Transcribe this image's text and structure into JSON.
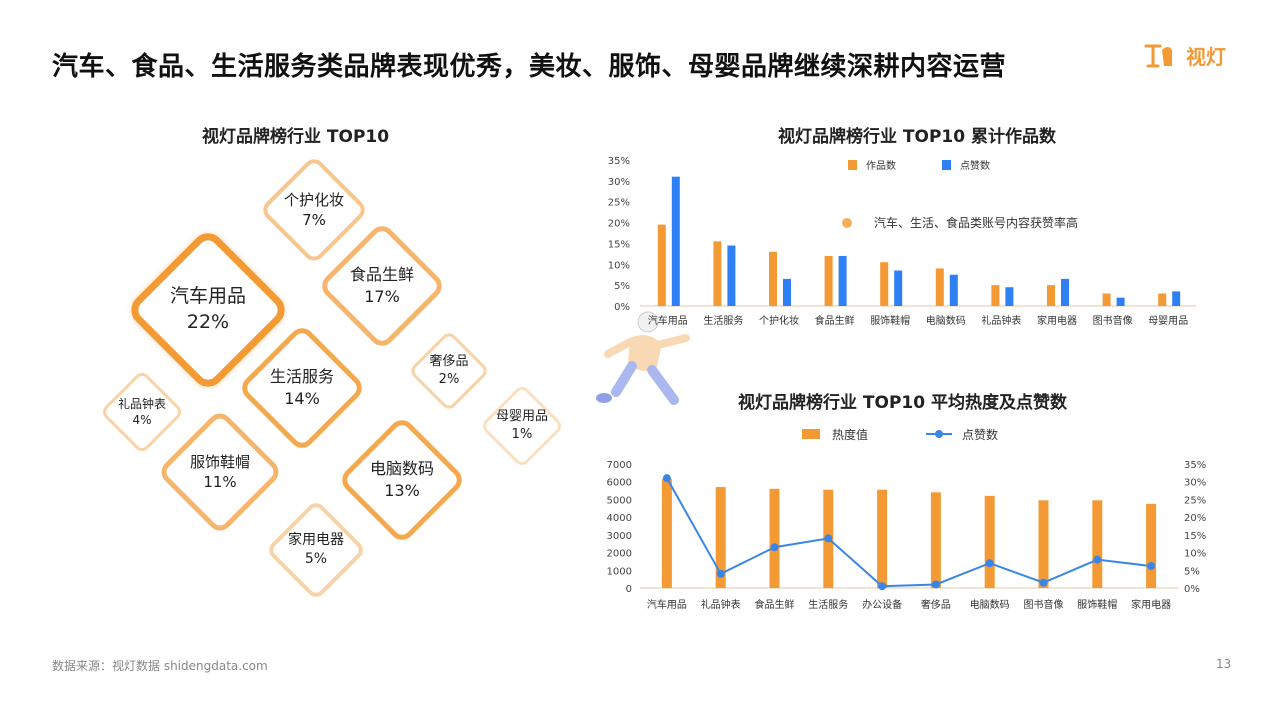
{
  "header": {
    "title": "汽车、食品、生活服务类品牌表现优秀，美妆、服饰、母婴品牌继续深耕内容运营",
    "logo_text": "视灯"
  },
  "left_chart": {
    "title": "视灯品牌榜行业 TOP10",
    "items": [
      {
        "name": "汽车用品",
        "pct": "22%"
      },
      {
        "name": "个护化妆",
        "pct": "7%"
      },
      {
        "name": "食品生鲜",
        "pct": "17%"
      },
      {
        "name": "生活服务",
        "pct": "14%"
      },
      {
        "name": "奢侈品",
        "pct": "2%"
      },
      {
        "name": "礼品钟表",
        "pct": "4%"
      },
      {
        "name": "母婴用品",
        "pct": "1%"
      },
      {
        "name": "服饰鞋帽",
        "pct": "11%"
      },
      {
        "name": "电脑数码",
        "pct": "13%"
      },
      {
        "name": "家用电器",
        "pct": "5%"
      }
    ]
  },
  "colors": {
    "orange": "#f39a35",
    "blue": "#2f7ff5",
    "line_blue": "#3a86e8",
    "diamond_border": "#f7c68f"
  },
  "chart_data": [
    {
      "type": "bar",
      "title": "视灯品牌榜行业 TOP10 累计作品数",
      "categories": [
        "汽车用品",
        "生活服务",
        "个护化妆",
        "食品生鲜",
        "服饰鞋帽",
        "电脑数码",
        "礼品钟表",
        "家用电器",
        "图书音像",
        "母婴用品"
      ],
      "series": [
        {
          "name": "作品数",
          "values": [
            19.5,
            15.5,
            13,
            12,
            10.5,
            9,
            5,
            5,
            3,
            3
          ],
          "color": "#f39a35"
        },
        {
          "name": "点赞数",
          "values": [
            31,
            14.5,
            6.5,
            12,
            8.5,
            7.5,
            4.5,
            6.5,
            2,
            3.5
          ],
          "color": "#2f7ff5"
        }
      ],
      "yticks": [
        "0%",
        "5%",
        "10%",
        "15%",
        "20%",
        "25%",
        "30%",
        "35%"
      ],
      "ylim": [
        0,
        35
      ],
      "legend_position": "top",
      "annotation": "汽车、生活、食品类账号内容获赞率高"
    },
    {
      "type": "bar+line",
      "title": "视灯品牌榜行业 TOP10 平均热度及点赞数",
      "categories": [
        "汽车用品",
        "礼品钟表",
        "食品生鲜",
        "生活服务",
        "办公设备",
        "奢侈品",
        "电脑数码",
        "图书音像",
        "服饰鞋帽",
        "家用电器"
      ],
      "series": [
        {
          "name": "热度值",
          "type": "bar",
          "axis": "left",
          "values": [
            6150,
            5700,
            5600,
            5550,
            5550,
            5400,
            5200,
            4950,
            4950,
            4750
          ],
          "color": "#f39a35"
        },
        {
          "name": "点赞数",
          "type": "line",
          "axis": "right",
          "values": [
            31,
            4,
            11.5,
            14,
            0.5,
            1,
            7,
            1.5,
            8,
            6.2
          ],
          "color": "#3a86e8"
        }
      ],
      "yticks_left": [
        "0",
        "1000",
        "2000",
        "3000",
        "4000",
        "5000",
        "6000",
        "7000"
      ],
      "yticks_right": [
        "0%",
        "5%",
        "10%",
        "15%",
        "20%",
        "25%",
        "30%",
        "35%"
      ],
      "ylim_left": [
        0,
        7000
      ],
      "ylim_right": [
        0,
        35
      ],
      "legend_position": "top"
    }
  ],
  "footer": {
    "source": "数据来源：视灯数据 shidengdata.com",
    "page": "13"
  }
}
